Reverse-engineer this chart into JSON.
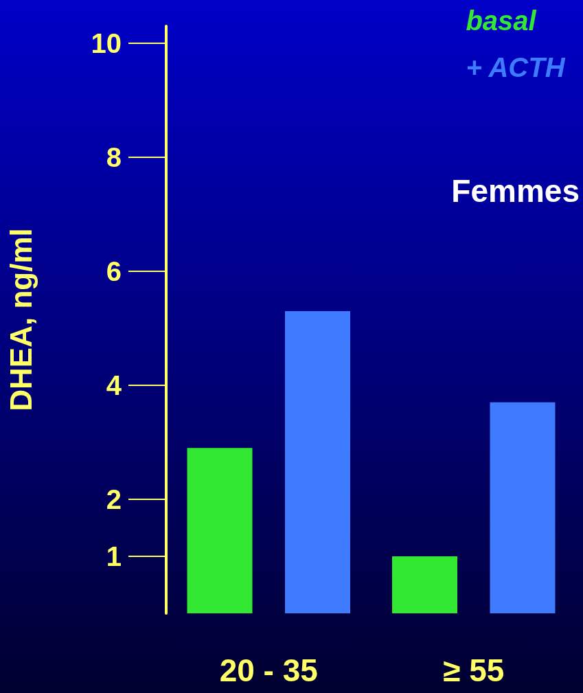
{
  "chart_data": {
    "type": "bar",
    "categories": [
      "20 - 35",
      "≥ 55"
    ],
    "series": [
      {
        "name": "basal",
        "color": "#33e833",
        "values": [
          2.9,
          1.0
        ]
      },
      {
        "name": "+ ACTH",
        "color": "#3f7bff",
        "values": [
          5.3,
          3.7
        ]
      }
    ],
    "ylabel": "DHEA, ng/ml",
    "ylim": [
      0,
      10.3
    ],
    "yticks": [
      1,
      2,
      4,
      6,
      8,
      10
    ],
    "annotations": [
      "Femmes"
    ],
    "legend": "top right",
    "grid": false
  }
}
